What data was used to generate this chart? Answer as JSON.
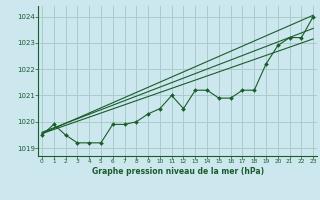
{
  "title": "Graphe pression niveau de la mer (hPa)",
  "background_color": "#cce8ee",
  "grid_color": "#aacccc",
  "line_color": "#1a5c2a",
  "ylim": [
    1018.7,
    1024.4
  ],
  "yticks": [
    1019,
    1020,
    1021,
    1022,
    1023,
    1024
  ],
  "xlim": [
    -0.3,
    23.3
  ],
  "y_main": [
    1019.5,
    1019.9,
    1019.5,
    1019.2,
    1019.2,
    1019.2,
    1019.9,
    1019.9,
    1020.0,
    1020.3,
    1020.5,
    1021.0,
    1020.5,
    1021.2,
    1021.2,
    1020.9,
    1020.9,
    1021.2,
    1021.2,
    1022.2,
    1022.9,
    1023.2,
    1023.2,
    1024.0
  ],
  "trend1": [
    1019.55,
    1023.15
  ],
  "trend2": [
    1019.55,
    1024.05
  ],
  "trend3": [
    1019.6,
    1023.55
  ]
}
